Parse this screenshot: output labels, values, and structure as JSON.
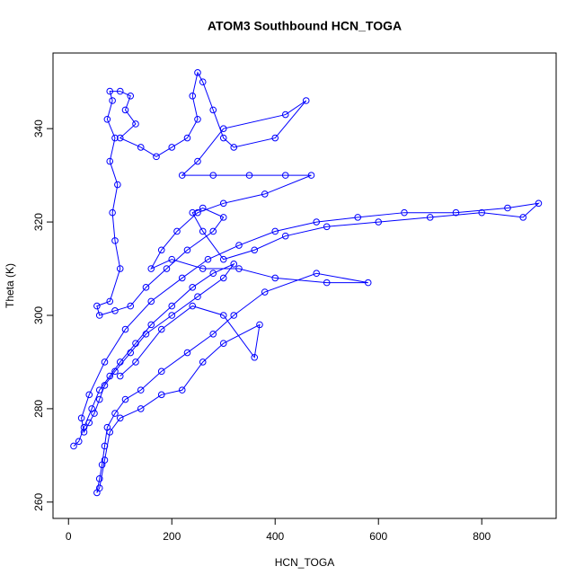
{
  "chart_data": {
    "type": "line",
    "markers": true,
    "color": "#0000ff",
    "title": "ATOM3 Southbound HCN_TOGA",
    "x_label": "HCN_TOGA",
    "y_label": "Theta (K)",
    "xlim": [
      -30,
      944
    ],
    "ylim": [
      256.5,
      356.2
    ],
    "xticks": [
      0,
      200,
      400,
      600,
      800
    ],
    "yticks": [
      260,
      280,
      300,
      320,
      340
    ],
    "x": [
      10,
      20,
      30,
      45,
      60,
      80,
      100,
      130,
      160,
      200,
      240,
      280,
      320,
      300,
      250,
      200,
      150,
      120,
      90,
      70,
      60,
      50,
      40,
      30,
      25,
      40,
      70,
      110,
      160,
      220,
      270,
      330,
      400,
      480,
      560,
      650,
      750,
      850,
      910,
      880,
      800,
      700,
      600,
      500,
      420,
      360,
      300,
      260,
      240,
      260,
      300,
      280,
      230,
      190,
      150,
      120,
      90,
      60,
      55,
      80,
      100,
      90,
      85,
      95,
      80,
      90,
      75,
      85,
      80,
      100,
      120,
      110,
      130,
      100,
      140,
      170,
      200,
      230,
      250,
      240,
      250,
      260,
      280,
      300,
      320,
      400,
      460,
      420,
      300,
      250,
      220,
      280,
      350,
      420,
      470,
      380,
      300,
      250,
      210,
      180,
      160,
      200,
      260,
      330,
      400,
      500,
      580,
      480,
      380,
      320,
      280,
      230,
      180,
      140,
      110,
      90,
      75,
      70,
      65,
      60,
      55,
      60,
      70,
      80,
      100,
      140,
      180,
      220,
      260,
      300,
      370,
      360,
      300,
      240,
      180,
      130,
      100
    ],
    "values": [
      272,
      273,
      276,
      280,
      284,
      287,
      290,
      294,
      298,
      302,
      306,
      309,
      311,
      308,
      304,
      300,
      296,
      292,
      288,
      285,
      282,
      279,
      277,
      275,
      278,
      283,
      290,
      297,
      303,
      308,
      312,
      315,
      318,
      320,
      321,
      322,
      322,
      323,
      324,
      321,
      322,
      321,
      320,
      319,
      317,
      314,
      312,
      318,
      322,
      323,
      321,
      318,
      314,
      310,
      306,
      302,
      301,
      300,
      302,
      303,
      310,
      316,
      322,
      328,
      333,
      338,
      342,
      346,
      348,
      348,
      347,
      344,
      341,
      338,
      336,
      334,
      336,
      338,
      342,
      347,
      352,
      350,
      344,
      338,
      336,
      338,
      346,
      343,
      340,
      333,
      330,
      330,
      330,
      330,
      330,
      326,
      324,
      322,
      318,
      314,
      310,
      312,
      310,
      310,
      308,
      307,
      307,
      309,
      305,
      300,
      296,
      292,
      288,
      284,
      282,
      279,
      276,
      272,
      268,
      265,
      262,
      263,
      269,
      275,
      278,
      280,
      283,
      284,
      290,
      294,
      298,
      291,
      300,
      302,
      297,
      290,
      287
    ]
  }
}
